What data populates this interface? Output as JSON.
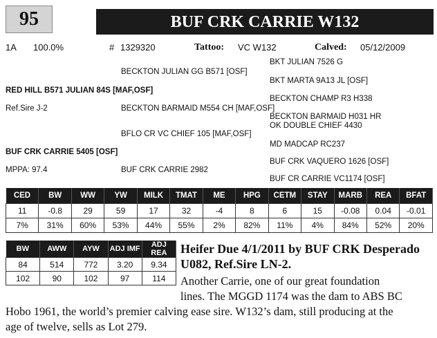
{
  "lot_number": "95",
  "animal_name": "BUF CRK CARRIE W132",
  "info": {
    "grade": "1A",
    "percent": "100.0%",
    "reg_symbol": "#",
    "reg_number": "1329320",
    "tattoo_label": "Tattoo:",
    "tattoo_value": "VC W132",
    "calved_label": "Calved:",
    "calved_value": "05/12/2009"
  },
  "pedigree": {
    "sire": "RED HILL B571 JULIAN 84S [MAF,OSF]",
    "sire_note": "Ref.Sire J-2",
    "sire_sire": "BECKTON JULIAN GG B571 [OSF]",
    "sire_dam": "BECKTON BARMAID M554 CH [MAF,OSF]",
    "ss_sire": "BKT JULIAN 7526 G",
    "ss_dam": "BKT MARTA 9A13 JL [OSF]",
    "sd_sire": "BECKTON CHAMP R3 H338",
    "sd_dam": "BECKTON BARMAID H031 HR",
    "dam": "BUF CRK CARRIE 5405 [OSF]",
    "dam_note": "MPPA: 97.4",
    "dam_sire": "BFLO CR VC CHIEF 105 [MAF,OSF]",
    "dam_dam": "BUF CRK CARRIE 2982",
    "ds_sire": "OK DOUBLE CHIEF 4430",
    "ds_dam": "MD MADCAP RC237",
    "dd_sire": "BUF CRK VAQUERO 1626 [OSF]",
    "dd_dam": "BUF CR CARRIE VC1174 [OSF]"
  },
  "epd": {
    "headers": [
      "CED",
      "BW",
      "WW",
      "YW",
      "MILK",
      "TMAT",
      "ME",
      "HPG",
      "CETM",
      "STAY",
      "MARB",
      "REA",
      "BFAT"
    ],
    "values": [
      "11",
      "-0.8",
      "29",
      "59",
      "17",
      "32",
      "-4",
      "8",
      "6",
      "15",
      "-0.08",
      "0.04",
      "-0.01"
    ],
    "percentiles": [
      "7%",
      "31%",
      "60%",
      "53%",
      "44%",
      "55%",
      "2%",
      "82%",
      "11%",
      "4%",
      "84%",
      "52%",
      "20%"
    ]
  },
  "actuals": {
    "headers": [
      "BW",
      "AWW",
      "AYW",
      "ADJ IMF",
      "ADJ REA"
    ],
    "values": [
      "84",
      "514",
      "772",
      "3.20",
      "9.34"
    ],
    "ratios": [
      "102",
      "90",
      "102",
      "97",
      "114"
    ]
  },
  "description": {
    "headline_1": "Heifer Due 4/1/2011 by BUF CRK Desperado",
    "headline_2": "U082, Ref.Sire LN-2.",
    "line_1": "Another Carrie, one of our great foundation",
    "line_2": "lines. The MGGD 1174 was the dam to ABS BC",
    "line_3": "Hobo 1961, the world’s premier calving ease sire. W132’s dam, still producing at the",
    "line_4": "age of twelve, sells as Lot 279."
  }
}
